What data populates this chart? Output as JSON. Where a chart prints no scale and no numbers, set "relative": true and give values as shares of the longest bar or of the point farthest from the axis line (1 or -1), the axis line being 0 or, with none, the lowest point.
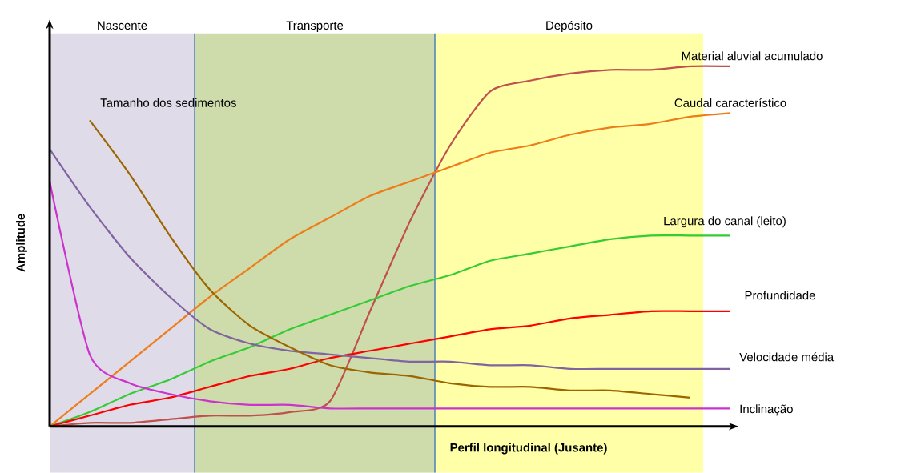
{
  "chart_data": {
    "type": "line",
    "relative": true,
    "xlabel": "Perfil longitudinal (Jusante)",
    "ylabel": "Amplitude",
    "marker": "none",
    "line_style": "solid",
    "categories": [
      null,
      null,
      null,
      null,
      null,
      null,
      null,
      null,
      null,
      null,
      null,
      null,
      null,
      null,
      null,
      null,
      null,
      null
    ],
    "annotations": [
      "Nascente",
      "Transporte",
      "Depósito"
    ],
    "series": [
      {
        "name": "Material aluvial  acumulado",
        "color": "#c0504d",
        "values": [
          0,
          0.01,
          0.01,
          0.02,
          0.03,
          0.03,
          0.04,
          0.07,
          0.32,
          0.57,
          0.78,
          0.93,
          0.96,
          0.98,
          0.99,
          0.99,
          1.0,
          1.0
        ]
      },
      {
        "name": "Caudal  característico",
        "color": "#ed7d1a",
        "values": [
          0,
          0.09,
          0.18,
          0.27,
          0.36,
          0.44,
          0.52,
          0.58,
          0.64,
          0.68,
          0.72,
          0.76,
          0.78,
          0.81,
          0.83,
          0.84,
          0.86,
          0.87
        ]
      },
      {
        "name": "Largura  do canal (leito)",
        "color": "#33cc33",
        "values": [
          0,
          0.04,
          0.09,
          0.13,
          0.18,
          0.22,
          0.27,
          0.31,
          0.35,
          0.39,
          0.42,
          0.46,
          0.48,
          0.5,
          0.52,
          0.53,
          0.53,
          0.53
        ]
      },
      {
        "name": "Profundidade",
        "color": "#ff0000",
        "values": [
          0,
          0.03,
          0.06,
          0.08,
          0.11,
          0.14,
          0.16,
          0.19,
          0.21,
          0.23,
          0.25,
          0.27,
          0.28,
          0.3,
          0.31,
          0.32,
          0.32,
          0.32
        ]
      },
      {
        "name": "Velocidade  média",
        "color": "#8064a2",
        "values": [
          0.77,
          0.61,
          0.47,
          0.36,
          0.27,
          0.23,
          0.21,
          0.2,
          0.19,
          0.18,
          0.18,
          0.17,
          0.17,
          0.16,
          0.16,
          0.16,
          0.16,
          0.16
        ]
      },
      {
        "name": "Tamanho  dos sedimentos",
        "color": "#9c6500",
        "values": [
          null,
          0.85,
          0.7,
          0.53,
          0.38,
          0.28,
          0.22,
          0.17,
          0.15,
          0.14,
          0.12,
          0.11,
          0.11,
          0.1,
          0.1,
          0.09,
          0.08,
          null
        ]
      },
      {
        "name": "Inclinação",
        "color": "#cc33cc",
        "values": [
          0.68,
          0.2,
          0.12,
          0.09,
          0.07,
          0.06,
          0.06,
          0.05,
          0.05,
          0.05,
          0.05,
          0.05,
          0.05,
          0.05,
          0.05,
          0.05,
          0.05,
          0.05
        ]
      }
    ]
  }
}
